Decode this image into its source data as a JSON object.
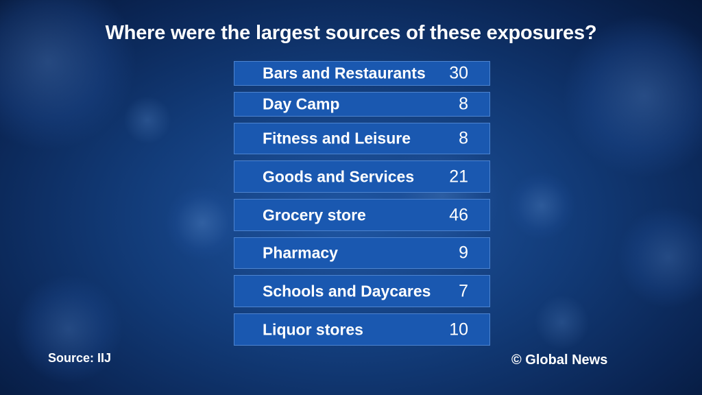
{
  "header": {
    "title": "Where were the largest sources of these exposures?"
  },
  "chart_data": {
    "type": "table",
    "title": "Where were the largest sources of these exposures?",
    "categories": [
      "Bars and Restaurants",
      "Day Camp",
      "Fitness and Leisure",
      "Goods and Services",
      "Grocery store",
      "Pharmacy",
      "Schools and Daycares",
      "Liquor stores"
    ],
    "values": [
      30,
      8,
      8,
      21,
      46,
      9,
      7,
      10
    ],
    "rows": [
      {
        "label": "Bars and Restaurants",
        "value": "30"
      },
      {
        "label": "Day Camp",
        "value": "8"
      },
      {
        "label": "Fitness and Leisure",
        "value": "8"
      },
      {
        "label": "Goods and Services",
        "value": "21"
      },
      {
        "label": "Grocery store",
        "value": "46"
      },
      {
        "label": "Pharmacy",
        "value": "9"
      },
      {
        "label": "Schools and Daycares",
        "value": "7"
      },
      {
        "label": "Liquor stores",
        "value": "10"
      }
    ]
  },
  "footer": {
    "source": "Source:  IIJ",
    "credit": "© Global News"
  },
  "colors": {
    "row_fill": "#1a58b0",
    "background_dark": "#0a2452",
    "text": "#ffffff"
  }
}
